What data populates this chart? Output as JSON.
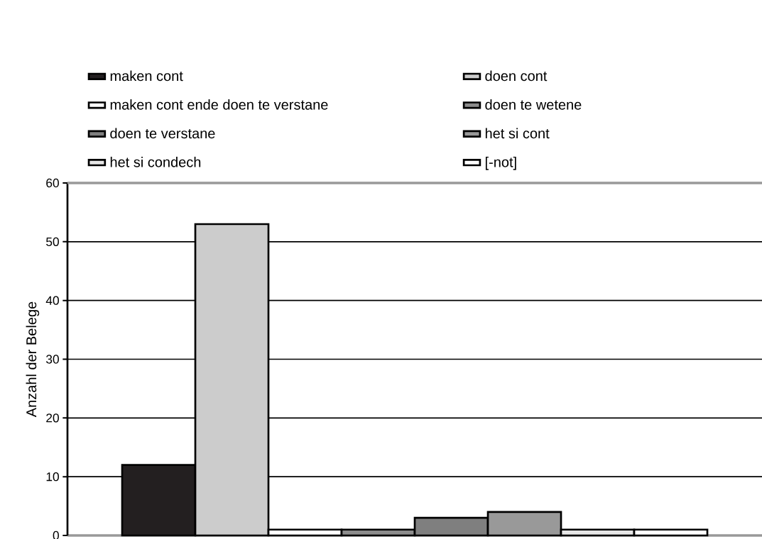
{
  "chart_data": {
    "type": "bar",
    "ylabel": "Anzahl der Belege",
    "categories": [
      null
    ],
    "series": [
      {
        "name": "maken cont",
        "color": "#231f20",
        "values": [
          12
        ]
      },
      {
        "name": "doen cont",
        "color": "#cccccc",
        "values": [
          53
        ]
      },
      {
        "name": "maken cont ende doen te verstane",
        "color": "#ffffff",
        "values": [
          1
        ]
      },
      {
        "name": "doen te wetene",
        "color": "#8c8c8c",
        "values": [
          1
        ]
      },
      {
        "name": "doen te verstane",
        "color": "#7f7f7f",
        "values": [
          3
        ]
      },
      {
        "name": "het si cont",
        "color": "#999999",
        "values": [
          4
        ]
      },
      {
        "name": "het si condech",
        "color": "#e6e6e6",
        "values": [
          1
        ]
      },
      {
        "name": "[-not]",
        "color": "#ffffff",
        "values": [
          1
        ]
      }
    ],
    "ylim": [
      0,
      60
    ],
    "yticks": [
      0,
      10,
      20,
      30,
      40,
      50,
      60
    ],
    "grid": "y",
    "legend": "top"
  }
}
